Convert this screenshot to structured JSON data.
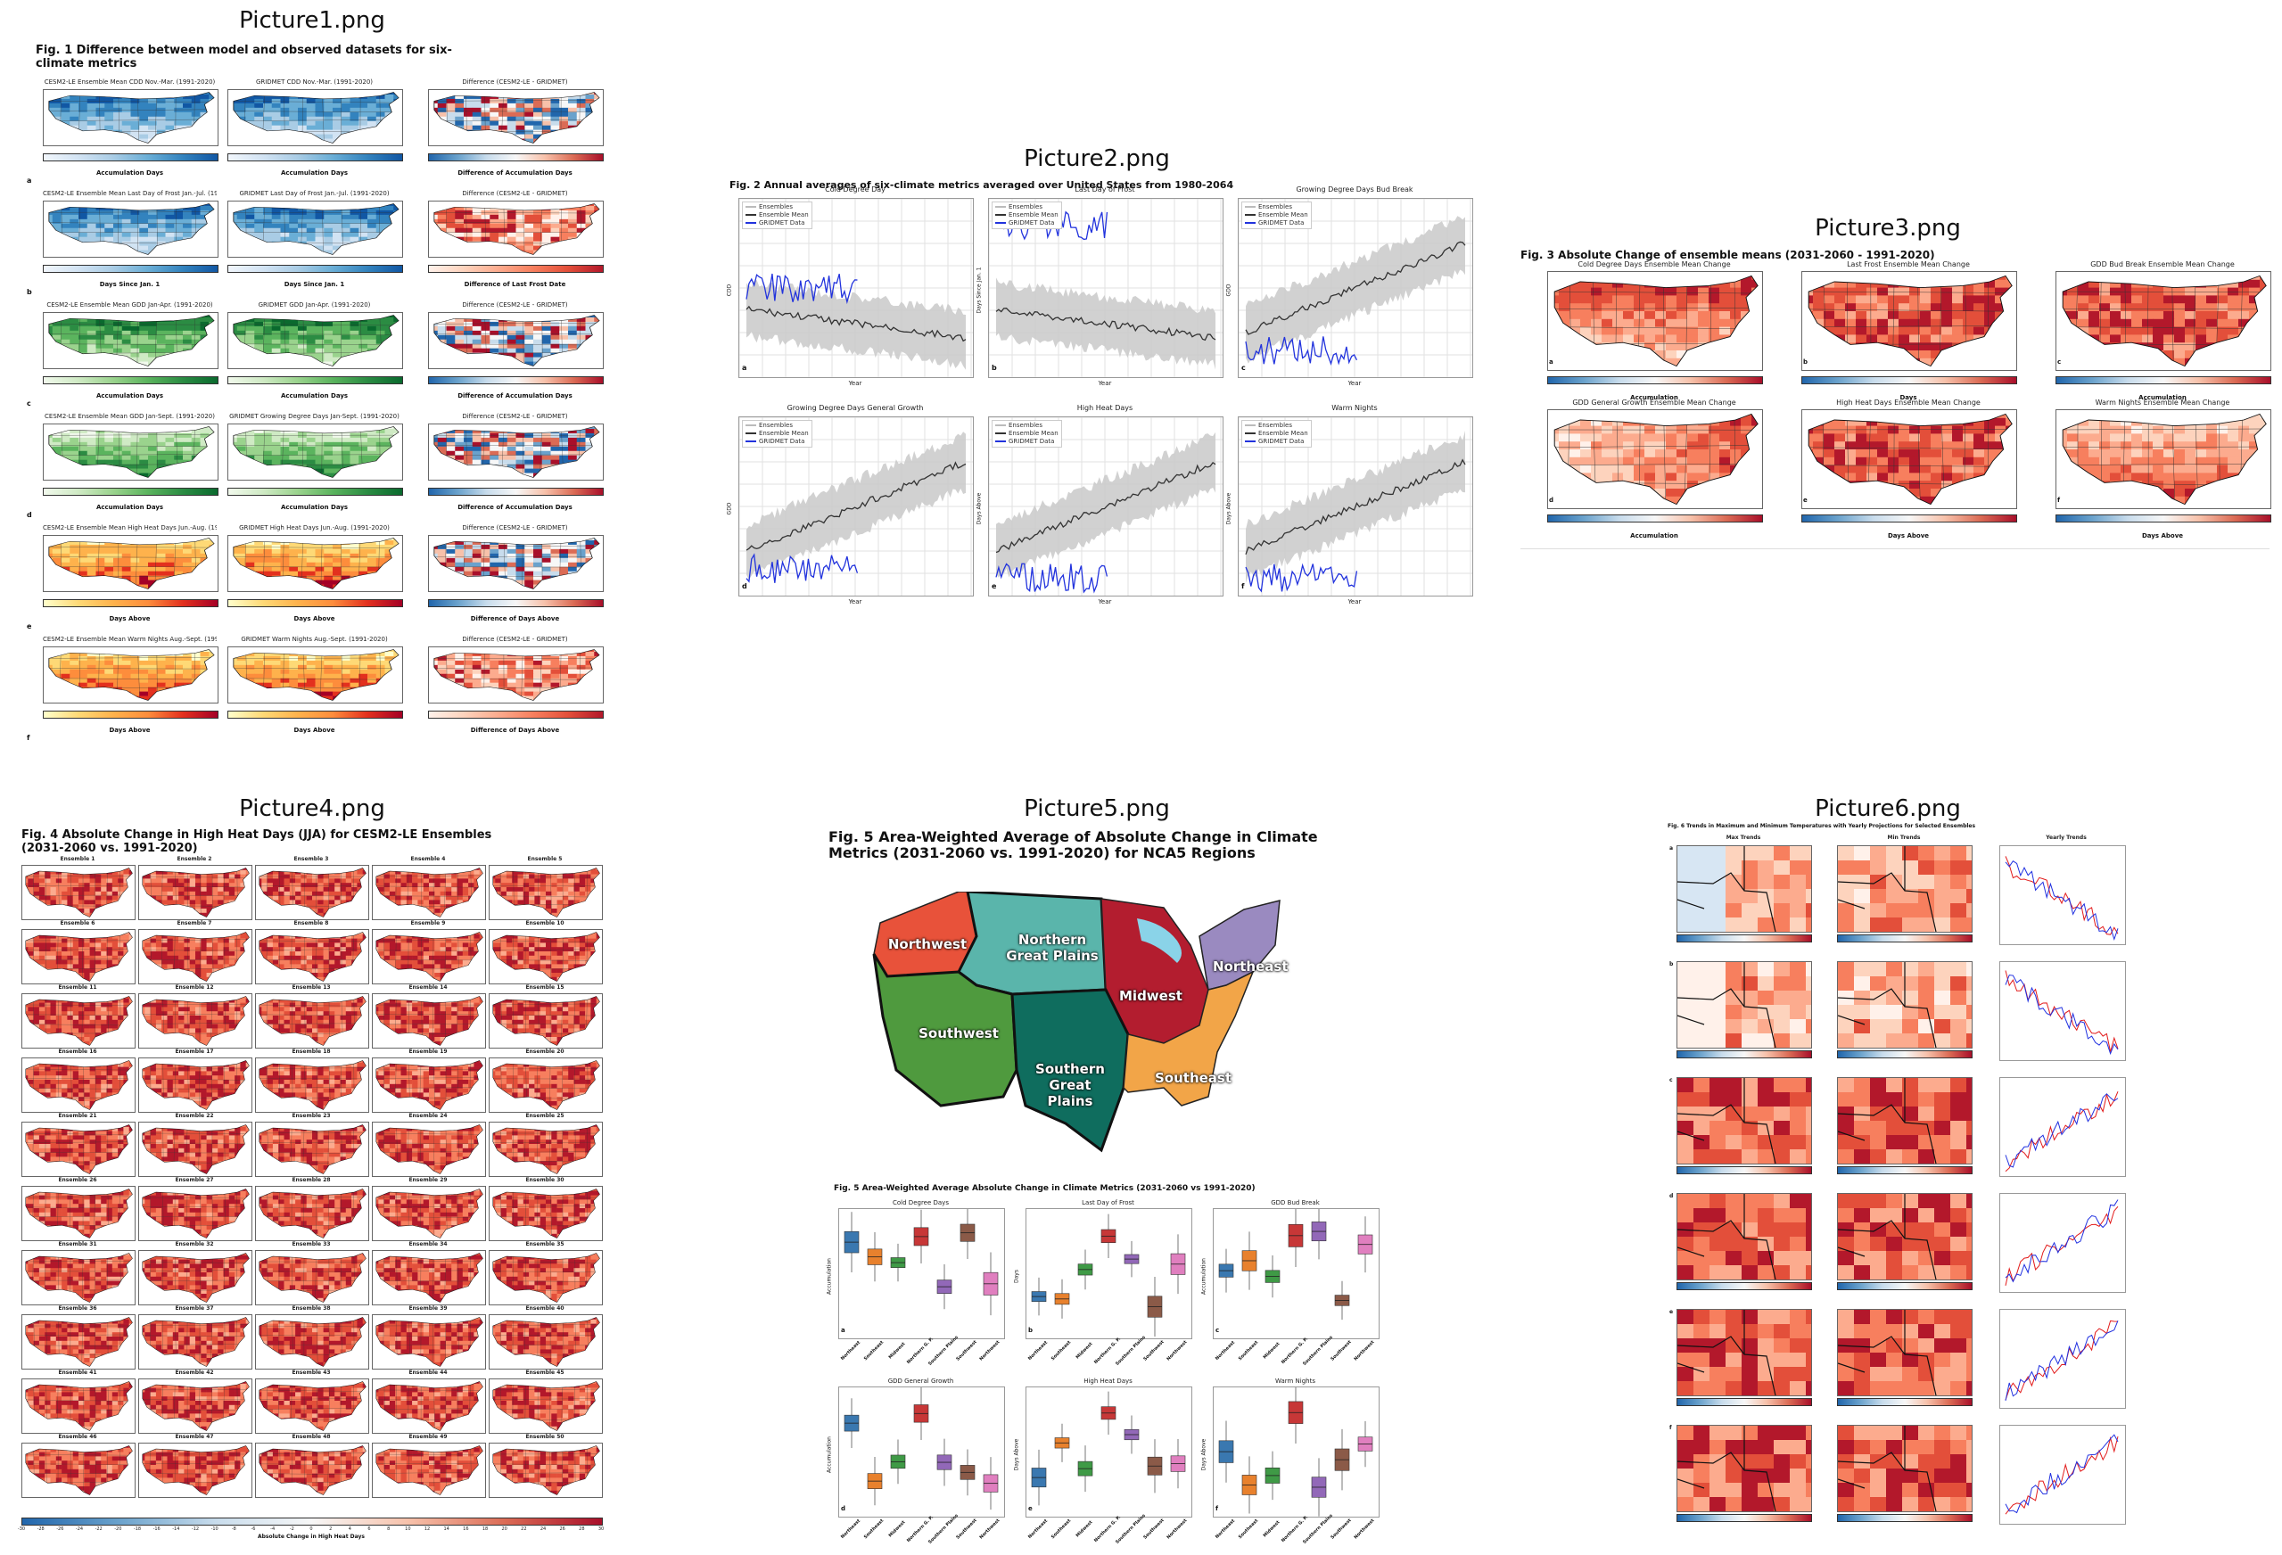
{
  "gallery": {
    "items": [
      {
        "title": "Picture1.png"
      },
      {
        "title": "Picture2.png"
      },
      {
        "title": "Picture3.png"
      },
      {
        "title": "Picture4.png"
      },
      {
        "title": "Picture5.png"
      },
      {
        "title": "Picture6.png"
      }
    ]
  },
  "pic1": {
    "fig_title": "Fig. 1 Difference between model and observed datasets for six-climate metrics",
    "rows": [
      {
        "letter": "a",
        "model": "CESM2-LE Ensemble Mean CDD Nov.-Mar. (1991-2020)",
        "obs": "GRIDMET CDD Nov.-Mar. (1991-2020)",
        "diff": "Difference (CESM2-LE - GRIDMET)",
        "cb1": "Accumulation Days",
        "cb2": "Accumulation Days",
        "cb3": "Difference of Accumulation Days"
      },
      {
        "letter": "b",
        "model": "CESM2-LE Ensemble Mean Last Day of Frost Jan.-Jul. (1991-2020)",
        "obs": "GRIDMET Last Day of Frost Jan.-Jul. (1991-2020)",
        "diff": "Difference (CESM2-LE - GRIDMET)",
        "cb1": "Days Since Jan. 1",
        "cb2": "Days Since Jan. 1",
        "cb3": "Difference of Last Frost Date"
      },
      {
        "letter": "c",
        "model": "CESM2-LE Ensemble Mean GDD Jan-Apr. (1991-2020)",
        "obs": "GRIDMET GDD Jan-Apr. (1991-2020)",
        "diff": "Difference (CESM2-LE - GRIDMET)",
        "cb1": "Accumulation Days",
        "cb2": "Accumulation Days",
        "cb3": "Difference of Accumulation Days"
      },
      {
        "letter": "d",
        "model": "CESM2-LE Ensemble Mean GDD Jan-Sept. (1991-2020)",
        "obs": "GRIDMET Growing Degree Days Jan-Sept. (1991-2020)",
        "diff": "Difference (CESM2-LE - GRIDMET)",
        "cb1": "Accumulation Days",
        "cb2": "Accumulation Days",
        "cb3": "Difference of Accumulation Days"
      },
      {
        "letter": "e",
        "model": "CESM2-LE Ensemble Mean High Heat Days Jun.-Aug. (1991-2020)",
        "obs": "GRIDMET High Heat Days Jun.-Aug. (1991-2020)",
        "diff": "Difference (CESM2-LE - GRIDMET)",
        "cb1": "Days Above",
        "cb2": "Days Above",
        "cb3": "Difference of Days Above"
      },
      {
        "letter": "f",
        "model": "CESM2-LE Ensemble Mean Warm Nights Aug.-Sept. (1991-2020)",
        "obs": "GRIDMET Warm Nights Aug.-Sept. (1991-2020)",
        "diff": "Difference (CESM2-LE - GRIDMET)",
        "cb1": "Days Above",
        "cb2": "Days Above",
        "cb3": "Difference of Days Above"
      }
    ]
  },
  "pic2": {
    "fig_title": "Fig. 2 Annual averages of six-climate metrics averaged over United States from 1980-2064",
    "xlabel": "Year",
    "legend": [
      "Ensembles",
      "Ensemble Mean",
      "GRIDMET Data"
    ],
    "panels": [
      {
        "title": "Cold Degree Day",
        "ylabel": "CDD",
        "letter": "a"
      },
      {
        "title": "Last Day of Frost",
        "ylabel": "Days Since Jan. 1",
        "letter": "b"
      },
      {
        "title": "Growing Degree Days Bud Break",
        "ylabel": "GDD",
        "letter": "c"
      },
      {
        "title": "Growing Degree Days General Growth",
        "ylabel": "GDD",
        "letter": "d"
      },
      {
        "title": "High Heat Days",
        "ylabel": "Days Above",
        "letter": "e"
      },
      {
        "title": "Warm Nights",
        "ylabel": "Days Above",
        "letter": "f"
      }
    ]
  },
  "pic3": {
    "fig_title": "Fig. 3 Absolute Change of ensemble means (2031-2060 - 1991-2020)",
    "panels": [
      {
        "title": "Cold Degree Days Ensemble Mean Change",
        "cb": "Accumulation",
        "letter": "a"
      },
      {
        "title": "Last Frost Ensemble Mean Change",
        "cb": "Days",
        "letter": "b"
      },
      {
        "title": "GDD Bud Break Ensemble Mean Change",
        "cb": "Accumulation",
        "letter": "c"
      },
      {
        "title": "GDD General Growth Ensemble Mean Change",
        "cb": "Accumulation",
        "letter": "d"
      },
      {
        "title": "High Heat Days Ensemble Mean Change",
        "cb": "Days Above",
        "letter": "e"
      },
      {
        "title": "Warm Nights Ensemble Mean Change",
        "cb": "Days Above",
        "letter": "f"
      }
    ]
  },
  "pic4": {
    "fig_title": "Fig. 4 Absolute Change in High Heat Days (JJA) for CESM2-LE Ensembles (2031-2060 vs. 1991-2020)",
    "ensemble_prefix": "Ensemble",
    "count": 50,
    "colorbar_label": "Absolute Change in High Heat Days",
    "colorbar_ticks": [
      "-30",
      "-28",
      "-26",
      "-24",
      "-22",
      "-20",
      "-18",
      "-16",
      "-14",
      "-12",
      "-10",
      "-8",
      "-6",
      "-4",
      "-2",
      "0",
      "2",
      "4",
      "6",
      "8",
      "10",
      "12",
      "14",
      "16",
      "18",
      "20",
      "22",
      "24",
      "26",
      "28",
      "30"
    ]
  },
  "pic5": {
    "fig_title": "Fig. 5 Area-Weighted Average of Absolute Change in Climate Metrics (2031-2060 vs. 1991-2020) for NCA5 Regions",
    "regions": [
      "Northwest",
      "Northern Great Plains",
      "Midwest",
      "Northeast",
      "Southwest",
      "Southern Great Plains",
      "Southeast"
    ],
    "box_title": "Fig. 5 Area-Weighted Average Absolute Change in Climate Metrics (2031-2060 vs 1991-2020)",
    "box_panels": [
      {
        "title": "Cold Degree Days",
        "ylabel": "Accumulation",
        "letter": "a"
      },
      {
        "title": "Last Day of Frost",
        "ylabel": "Days",
        "letter": "b"
      },
      {
        "title": "GDD Bud Break",
        "ylabel": "Accumulation",
        "letter": "c"
      },
      {
        "title": "GDD General Growth",
        "ylabel": "Accumulation",
        "letter": "d"
      },
      {
        "title": "High Heat Days",
        "ylabel": "Days Above",
        "letter": "e"
      },
      {
        "title": "Warm Nights",
        "ylabel": "Days Above",
        "letter": "f"
      }
    ],
    "box_categories": [
      "Northeast",
      "Southeast",
      "Midwest",
      "Northern G. P.",
      "Southern Plains",
      "Southwest",
      "Northwest"
    ],
    "box_colors": [
      "#3a78b0",
      "#e8812d",
      "#3f9a46",
      "#c73737",
      "#9268b8",
      "#8b5a48",
      "#e07fbf"
    ]
  },
  "pic6": {
    "fig_title": "Fig. 6 Trends in Maximum and Minimum Temperatures with Yearly Projections for Selected Ensembles",
    "col_titles": [
      "Max Trends",
      "Min Trends",
      "Yearly Trends"
    ],
    "letters": [
      "a",
      "b",
      "c",
      "d",
      "e",
      "f"
    ]
  }
}
